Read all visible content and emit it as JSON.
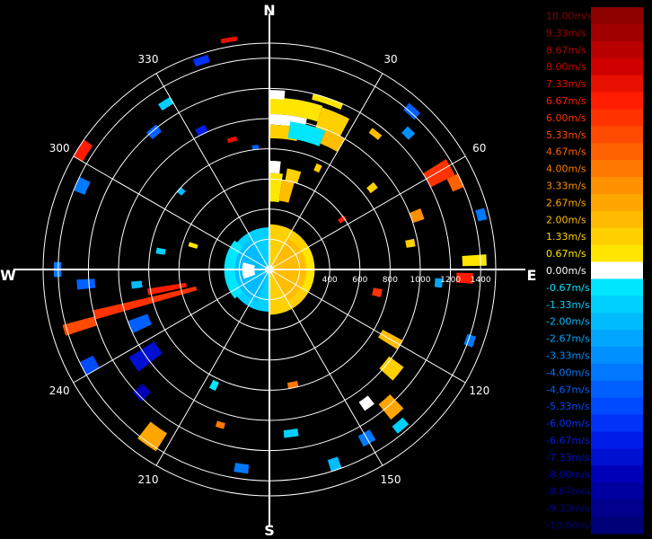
{
  "chart_data": {
    "type": "polar-ppi",
    "compass": {
      "north": "N",
      "east": "E",
      "south": "S",
      "west": "W"
    },
    "bearing_labels": [
      {
        "deg": 30,
        "text": "30"
      },
      {
        "deg": 60,
        "text": "60"
      },
      {
        "deg": 120,
        "text": "120"
      },
      {
        "deg": 150,
        "text": "150"
      },
      {
        "deg": 210,
        "text": "210"
      },
      {
        "deg": 240,
        "text": "240"
      },
      {
        "deg": 300,
        "text": "300"
      },
      {
        "deg": 330,
        "text": "330"
      }
    ],
    "range_rings": [
      200,
      400,
      600,
      800,
      1000,
      1200,
      1400
    ],
    "range_labels_shown": [
      "400",
      "600",
      "800",
      "1000",
      "1200",
      "1400"
    ],
    "scale": {
      "levels": [
        {
          "label": "10.00m/s",
          "value": 10.0,
          "color": "#8c0000",
          "text_color": "#8c0000"
        },
        {
          "label": "9.33m/s",
          "value": 9.33,
          "color": "#a00000",
          "text_color": "#a00000"
        },
        {
          "label": "8.67m/s",
          "value": 8.67,
          "color": "#b80000",
          "text_color": "#b80000"
        },
        {
          "label": "8.00m/s",
          "value": 8.0,
          "color": "#d00000",
          "text_color": "#d00000"
        },
        {
          "label": "7.33m/s",
          "value": 7.33,
          "color": "#e81000",
          "text_color": "#e81000"
        },
        {
          "label": "6.67m/s",
          "value": 6.67,
          "color": "#ff1c00",
          "text_color": "#ff1c00"
        },
        {
          "label": "6.00m/s",
          "value": 6.0,
          "color": "#ff3200",
          "text_color": "#ff3200"
        },
        {
          "label": "5.33m/s",
          "value": 5.33,
          "color": "#ff4a00",
          "text_color": "#ff4a00"
        },
        {
          "label": "4.67m/s",
          "value": 4.67,
          "color": "#ff6000",
          "text_color": "#ff6000"
        },
        {
          "label": "4.00m/s",
          "value": 4.0,
          "color": "#ff7800",
          "text_color": "#ff7800"
        },
        {
          "label": "3.33m/s",
          "value": 3.33,
          "color": "#ff9000",
          "text_color": "#ff9000"
        },
        {
          "label": "2.67m/s",
          "value": 2.67,
          "color": "#ffa600",
          "text_color": "#ffa600"
        },
        {
          "label": "2.00m/s",
          "value": 2.0,
          "color": "#ffbc00",
          "text_color": "#ffbc00"
        },
        {
          "label": "1.33m/s",
          "value": 1.33,
          "color": "#ffd000",
          "text_color": "#ffd000"
        },
        {
          "label": "0.67m/s",
          "value": 0.67,
          "color": "#ffe600",
          "text_color": "#ffe600"
        },
        {
          "label": "0.00m/s",
          "value": 0.0,
          "color": "#ffffff",
          "text_color": "#ffffff"
        },
        {
          "label": "-0.67m/s",
          "value": -0.67,
          "color": "#00e6ff",
          "text_color": "#00e6ff"
        },
        {
          "label": "-1.33m/s",
          "value": -1.33,
          "color": "#00d0ff",
          "text_color": "#00d0ff"
        },
        {
          "label": "-2.00m/s",
          "value": -2.0,
          "color": "#00bcff",
          "text_color": "#00bcff"
        },
        {
          "label": "-2.67m/s",
          "value": -2.67,
          "color": "#00a6ff",
          "text_color": "#00a6ff"
        },
        {
          "label": "-3.33m/s",
          "value": -3.33,
          "color": "#0090ff",
          "text_color": "#0090ff"
        },
        {
          "label": "-4.00m/s",
          "value": -4.0,
          "color": "#0078ff",
          "text_color": "#0078ff"
        },
        {
          "label": "-4.67m/s",
          "value": -4.67,
          "color": "#0060ff",
          "text_color": "#0060ff"
        },
        {
          "label": "-5.33m/s",
          "value": -5.33,
          "color": "#004aff",
          "text_color": "#004aff"
        },
        {
          "label": "-6.00m/s",
          "value": -6.0,
          "color": "#0032f8",
          "text_color": "#0032f8"
        },
        {
          "label": "-6.67m/s",
          "value": -6.67,
          "color": "#001ce8",
          "text_color": "#001ce8"
        },
        {
          "label": "-7.33m/s",
          "value": -7.33,
          "color": "#0010d0",
          "text_color": "#0010d0"
        },
        {
          "label": "-8.00m/s",
          "value": -8.0,
          "color": "#0000b8",
          "text_color": "#0000b8"
        },
        {
          "label": "-8.67m/s",
          "value": -8.67,
          "color": "#0000a0",
          "text_color": "#0000a0"
        },
        {
          "label": "-9.33m/s",
          "value": -9.33,
          "color": "#00008c",
          "text_color": "#00008c"
        },
        {
          "label": "-10.00m/s",
          "value": -10.0,
          "color": "#000078",
          "text_color": "#000078"
        }
      ]
    },
    "returns": [
      {
        "az": 0,
        "az2": 18,
        "r": 1030,
        "r2": 1140,
        "v": 0.67
      },
      {
        "az": 0,
        "az2": 14,
        "r": 960,
        "r2": 1030,
        "v": 0.0
      },
      {
        "az": 0,
        "az2": 12,
        "r": 870,
        "r2": 960,
        "v": 1.33
      },
      {
        "az": 8,
        "az2": 22,
        "r": 880,
        "r2": 990,
        "v": -0.67
      },
      {
        "az": 18,
        "az2": 28,
        "r": 990,
        "r2": 1130,
        "v": 1.33
      },
      {
        "az": 22,
        "az2": 30,
        "r": 900,
        "r2": 1000,
        "v": 2.0
      },
      {
        "az": 14,
        "az2": 24,
        "r": 1160,
        "r2": 1200,
        "v": 0.67
      },
      {
        "az": 0,
        "az2": 5,
        "r": 1130,
        "r2": 1190,
        "v": 0.0
      },
      {
        "az": 0,
        "az2": 8,
        "r": 450,
        "r2": 640,
        "v": 0.67
      },
      {
        "az": 8,
        "az2": 16,
        "r": 460,
        "r2": 600,
        "v": 2.0
      },
      {
        "az": 10,
        "az2": 18,
        "r": 600,
        "r2": 680,
        "v": 1.33
      },
      {
        "az": 0,
        "az2": 6,
        "r": 640,
        "r2": 720,
        "v": 0.0
      },
      {
        "az": 0,
        "az2": 180,
        "r": 0,
        "r2": 300,
        "v": 1.33
      },
      {
        "az": 30,
        "az2": 150,
        "r": 40,
        "r2": 240,
        "v": 2.0
      },
      {
        "az": 60,
        "az2": 120,
        "r": 250,
        "r2": 300,
        "v": 0.67
      },
      {
        "az": 180,
        "az2": 360,
        "r": 0,
        "r2": 280,
        "v": -1.33
      },
      {
        "az": 200,
        "az2": 330,
        "r": 40,
        "r2": 230,
        "v": -2.0
      },
      {
        "az": 230,
        "az2": 310,
        "r": 230,
        "r2": 300,
        "v": -0.67
      },
      {
        "az": 250,
        "az2": 285,
        "r": 100,
        "r2": 180,
        "v": 0.0
      },
      {
        "az": 58,
        "az2": 63,
        "r": 1200,
        "r2": 1380,
        "v": 6.0
      },
      {
        "az": 63,
        "az2": 67,
        "r": 1320,
        "r2": 1400,
        "v": 4.67
      },
      {
        "az": 68,
        "az2": 72,
        "r": 1000,
        "r2": 1080,
        "v": 3.33
      },
      {
        "az": 74,
        "az2": 77,
        "r": 1420,
        "r2": 1480,
        "v": -4.0
      },
      {
        "az": 86,
        "az2": 89,
        "r": 1280,
        "r2": 1440,
        "v": 0.67
      },
      {
        "az": 91,
        "az2": 94,
        "r": 1240,
        "r2": 1350,
        "v": 6.67
      },
      {
        "az": 93,
        "az2": 96,
        "r": 1100,
        "r2": 1150,
        "v": -2.67
      },
      {
        "az": 118,
        "az2": 122,
        "r": 850,
        "r2": 1000,
        "v": 2.0
      },
      {
        "az": 126,
        "az2": 132,
        "r": 980,
        "r2": 1100,
        "v": 1.33
      },
      {
        "az": 136,
        "az2": 141,
        "r": 1150,
        "r2": 1280,
        "v": 2.67
      },
      {
        "az": 138,
        "az2": 142,
        "r": 1320,
        "r2": 1380,
        "v": -1.33
      },
      {
        "az": 142,
        "az2": 146,
        "r": 1060,
        "r2": 1130,
        "v": 0.0
      },
      {
        "az": 148,
        "az2": 152,
        "r": 1250,
        "r2": 1330,
        "v": -4.0
      },
      {
        "az": 170,
        "az2": 175,
        "r": 1070,
        "r2": 1120,
        "v": -1.33
      },
      {
        "az": 166,
        "az2": 171,
        "r": 760,
        "r2": 800,
        "v": 4.0
      },
      {
        "az": 212,
        "az2": 218,
        "r": 1280,
        "r2": 1420,
        "v": 2.67
      },
      {
        "az": 224,
        "az2": 228,
        "r": 1130,
        "r2": 1220,
        "v": -8.0
      },
      {
        "az": 232,
        "az2": 238,
        "r": 900,
        "r2": 1100,
        "v": -7.33
      },
      {
        "az": 240,
        "az2": 244,
        "r": 1300,
        "r2": 1400,
        "v": -5.33
      },
      {
        "az": 245,
        "az2": 250,
        "r": 860,
        "r2": 1000,
        "v": -4.67
      },
      {
        "az": 254,
        "az2": 257,
        "r": 500,
        "r2": 1200,
        "v": 6.0
      },
      {
        "az": 252,
        "az2": 255,
        "r": 1200,
        "r2": 1420,
        "v": 5.33
      },
      {
        "az": 258,
        "az2": 261,
        "r": 560,
        "r2": 820,
        "v": 6.67
      },
      {
        "az": 264,
        "az2": 267,
        "r": 1160,
        "r2": 1280,
        "v": -4.67
      },
      {
        "az": 268,
        "az2": 272,
        "r": 1380,
        "r2": 1430,
        "v": -4.0
      },
      {
        "az": 262,
        "az2": 265,
        "r": 850,
        "r2": 920,
        "v": -2.0
      },
      {
        "az": 292,
        "az2": 296,
        "r": 1320,
        "r2": 1400,
        "v": -4.0
      },
      {
        "az": 300,
        "az2": 305,
        "r": 1430,
        "r2": 1500,
        "v": 6.67
      },
      {
        "az": 318,
        "az2": 322,
        "r": 1160,
        "r2": 1220,
        "v": -4.67
      },
      {
        "az": 326,
        "az2": 330,
        "r": 1270,
        "r2": 1320,
        "v": -1.33
      },
      {
        "az": 332,
        "az2": 336,
        "r": 1000,
        "r2": 1050,
        "v": -6.67
      },
      {
        "az": 340,
        "az2": 344,
        "r": 1430,
        "r2": 1480,
        "v": -6.0
      },
      {
        "az": 348,
        "az2": 352,
        "r": 1530,
        "r2": 1560,
        "v": 7.33
      },
      {
        "az": 342,
        "az2": 346,
        "r": 880,
        "r2": 910,
        "v": 7.33
      },
      {
        "az": 352,
        "az2": 355,
        "r": 800,
        "r2": 830,
        "v": -4.67
      },
      {
        "az": 40,
        "az2": 44,
        "r": 1380,
        "r2": 1440,
        "v": -4.67
      },
      {
        "az": 44,
        "az2": 47,
        "r": 1260,
        "r2": 1320,
        "v": -3.33
      },
      {
        "az": 36,
        "az2": 40,
        "r": 1120,
        "r2": 1160,
        "v": 2.0
      },
      {
        "az": 50,
        "az2": 53,
        "r": 840,
        "r2": 900,
        "v": 1.33
      },
      {
        "az": 78,
        "az2": 81,
        "r": 920,
        "r2": 980,
        "v": 1.33
      },
      {
        "az": 100,
        "az2": 104,
        "r": 700,
        "r2": 760,
        "v": 6.0
      },
      {
        "az": 108,
        "az2": 111,
        "r": 1380,
        "r2": 1440,
        "v": -4.0
      },
      {
        "az": 160,
        "az2": 163,
        "r": 1320,
        "r2": 1400,
        "v": -2.0
      },
      {
        "az": 186,
        "az2": 190,
        "r": 1300,
        "r2": 1360,
        "v": -4.0
      },
      {
        "az": 196,
        "az2": 199,
        "r": 1060,
        "r2": 1100,
        "v": 4.0
      },
      {
        "az": 204,
        "az2": 207,
        "r": 820,
        "r2": 880,
        "v": -0.67
      },
      {
        "az": 278,
        "az2": 281,
        "r": 700,
        "r2": 760,
        "v": -1.33
      },
      {
        "az": 286,
        "az2": 289,
        "r": 500,
        "r2": 560,
        "v": 0.67
      },
      {
        "az": 310,
        "az2": 313,
        "r": 760,
        "r2": 800,
        "v": -2.0
      },
      {
        "az": 24,
        "az2": 27,
        "r": 720,
        "r2": 770,
        "v": 1.33
      },
      {
        "az": 54,
        "az2": 57,
        "r": 560,
        "r2": 610,
        "v": 6.67
      }
    ]
  }
}
